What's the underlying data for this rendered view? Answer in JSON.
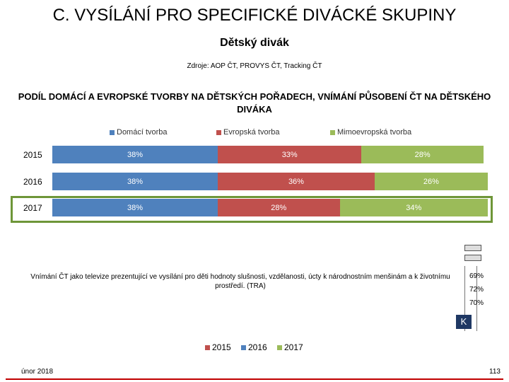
{
  "title": "C. VYSÍLÁNÍ PRO SPECIFICKÉ DIVÁCKÉ SKUPINY",
  "subtitle": "Dětský divák",
  "sources": "Zdroje: AOP ČT, PROVYS ČT, Tracking ČT",
  "section_heading_line1": "PODÍL DOMÁCÍ A EVROPSKÉ TVORBY NA DĚTSKÝCH POŘADECH, VNÍMÁNÍ PŮSOBENÍ ČT NA DĚTSKÉHO",
  "section_heading_line2": "DIVÁKA",
  "colors": {
    "domestic": "#4f81bd",
    "european": "#c0504d",
    "non_european": "#9bbb59"
  },
  "chart_data": [
    {
      "type": "bar",
      "orientation": "horizontal-stacked",
      "categories": [
        "2015",
        "2016",
        "2017"
      ],
      "series": [
        {
          "name": "Domácí tvorba",
          "values": [
            38,
            38,
            38
          ],
          "labels": [
            "38%",
            "38%",
            "38%"
          ]
        },
        {
          "name": "Evropská tvorba",
          "values": [
            33,
            36,
            28
          ],
          "labels": [
            "33%",
            "36%",
            "28%"
          ]
        },
        {
          "name": "Mimoevropská tvorba",
          "values": [
            28,
            26,
            34
          ],
          "labels": [
            "28%",
            "26%",
            "34%"
          ]
        }
      ],
      "xlim": [
        0,
        100
      ],
      "highlighted_category": "2017"
    },
    {
      "type": "bar",
      "orientation": "horizontal",
      "category": "Vnímání ČT jako televize prezentující ve vysílání pro děti hodnoty slušnosti, vzdělanosti, úcty k národnostním menšinám a k životnímu prostředí. (TRA)",
      "series": [
        {
          "name": "2015",
          "value": 69,
          "label": "69%"
        },
        {
          "name": "2016",
          "value": 72,
          "label": "72%"
        },
        {
          "name": "2017",
          "value": 70,
          "label": "70%"
        }
      ]
    }
  ],
  "k_badge": "K",
  "footer_date": "únor 2018",
  "page_number": "113"
}
